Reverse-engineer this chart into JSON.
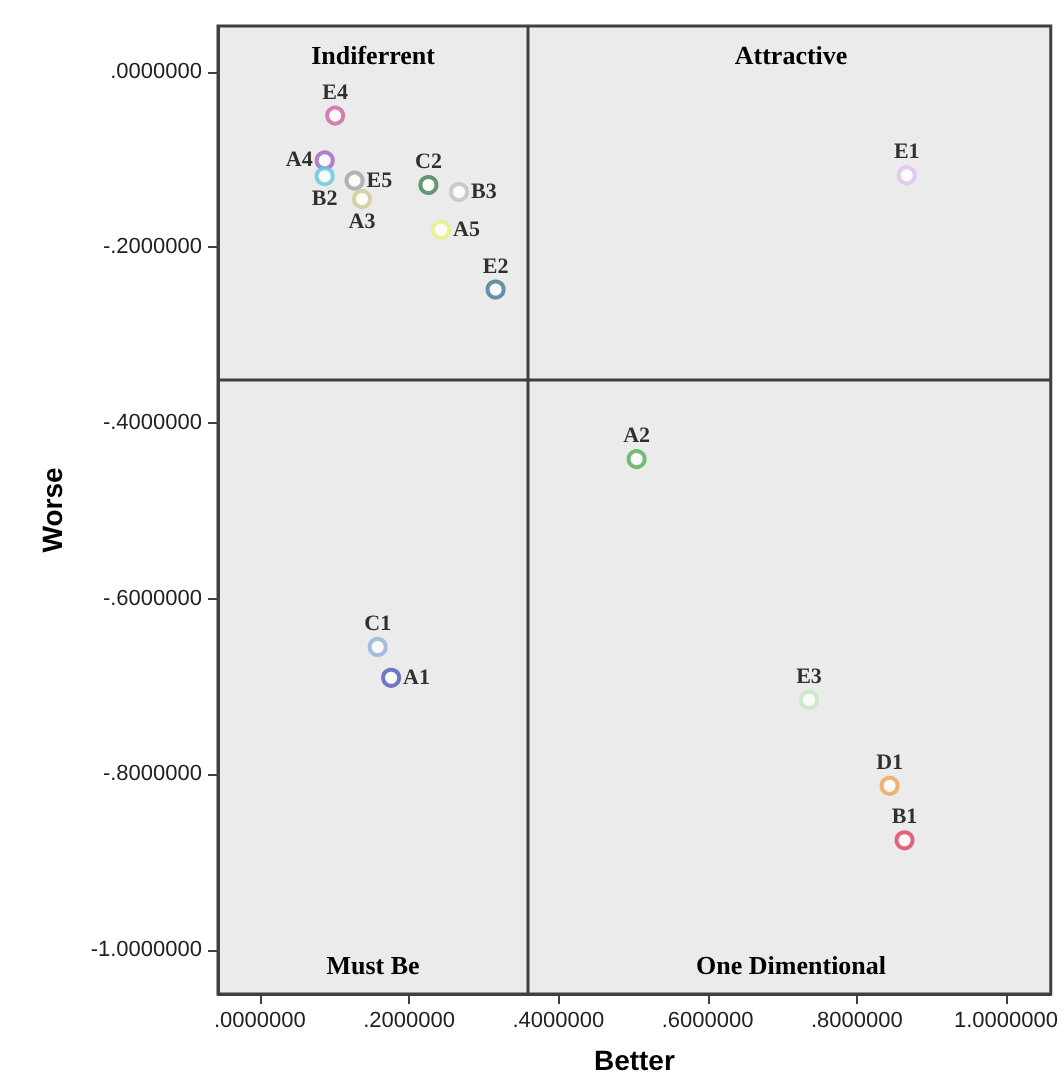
{
  "chart_data": {
    "type": "scatter",
    "xlabel": "Better",
    "ylabel": "Worse",
    "xlim": [
      -0.056,
      1.06
    ],
    "ylim": [
      -1.05,
      0.052
    ],
    "xticks": [
      {
        "value": 0,
        "label": ".0000000"
      },
      {
        "value": 0.2,
        "label": ".2000000"
      },
      {
        "value": 0.4,
        "label": ".4000000"
      },
      {
        "value": 0.6,
        "label": ".6000000"
      },
      {
        "value": 0.8,
        "label": ".8000000"
      },
      {
        "value": 1,
        "label": "1.0000000"
      }
    ],
    "yticks": [
      {
        "value": 0,
        "label": ".0000000"
      },
      {
        "value": -0.2,
        "label": "-.2000000"
      },
      {
        "value": -0.4,
        "label": "-.4000000"
      },
      {
        "value": -0.6,
        "label": "-.6000000"
      },
      {
        "value": -0.8,
        "label": "-.8000000"
      },
      {
        "value": -1,
        "label": "-1.0000000"
      }
    ],
    "grid": false,
    "legend": false,
    "marker": "circle",
    "ref_lines": [
      {
        "axis": "x",
        "value": 0.358,
        "color": "#404040"
      },
      {
        "axis": "y",
        "value": -0.35,
        "color": "#404040"
      }
    ],
    "annotations": [
      "Indiferrent",
      "Attractive",
      "Must Be",
      "One Dimentional"
    ],
    "series": [
      {
        "name": "E4",
        "color": "#d060a0",
        "x": [
          0.101
        ],
        "values": [
          -0.05
        ]
      },
      {
        "name": "A4",
        "color": "#a060c0",
        "x": [
          0.087
        ],
        "values": [
          -0.101
        ]
      },
      {
        "name": "B2",
        "color": "#60c8d8",
        "x": [
          0.087
        ],
        "values": [
          -0.119
        ]
      },
      {
        "name": "E5",
        "color": "#a0a0a8",
        "x": [
          0.127
        ],
        "values": [
          -0.124
        ]
      },
      {
        "name": "A3",
        "color": "#d0c890",
        "x": [
          0.137
        ],
        "values": [
          -0.145
        ]
      },
      {
        "name": "C2",
        "color": "#408050",
        "x": [
          0.226
        ],
        "values": [
          -0.129
        ]
      },
      {
        "name": "B3",
        "color": "#c0c0c0",
        "x": [
          0.267
        ],
        "values": [
          -0.137
        ]
      },
      {
        "name": "A5",
        "color": "#e8f080",
        "x": [
          0.243
        ],
        "values": [
          -0.18
        ]
      },
      {
        "name": "E2",
        "color": "#407890",
        "x": [
          0.316
        ],
        "values": [
          -0.248
        ]
      },
      {
        "name": "E1",
        "color": "#e0c0e8",
        "x": [
          0.867
        ],
        "values": [
          -0.118
        ]
      },
      {
        "name": "A2",
        "color": "#50b050",
        "x": [
          0.505
        ],
        "values": [
          -0.441
        ]
      },
      {
        "name": "C1",
        "color": "#90b0d8",
        "x": [
          0.158
        ],
        "values": [
          -0.655
        ]
      },
      {
        "name": "A1",
        "color": "#5058b8",
        "x": [
          0.176
        ],
        "values": [
          -0.69
        ]
      },
      {
        "name": "E3",
        "color": "#c0e8c0",
        "x": [
          0.736
        ],
        "values": [
          -0.715
        ]
      },
      {
        "name": "D1",
        "color": "#f0a050",
        "x": [
          0.844
        ],
        "values": [
          -0.813
        ]
      },
      {
        "name": "B1",
        "color": "#e04060",
        "x": [
          0.864
        ],
        "values": [
          -0.875
        ]
      }
    ]
  }
}
